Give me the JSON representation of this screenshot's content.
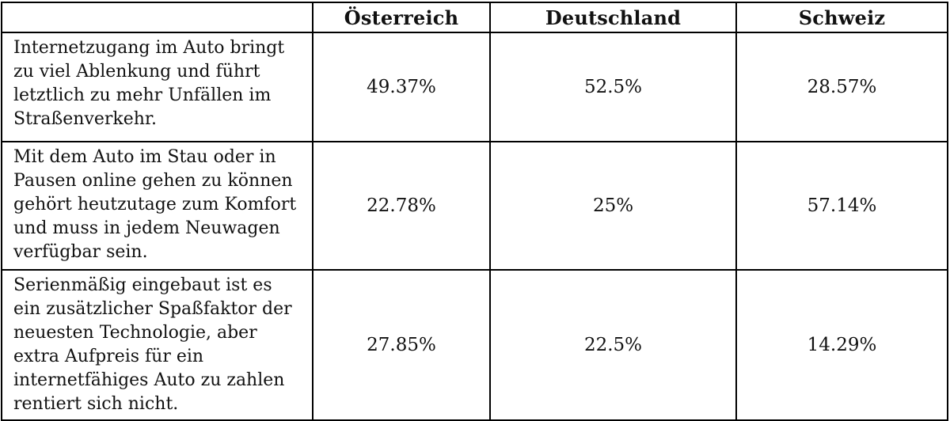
{
  "colors": {
    "border": "#000000",
    "text": "#111111",
    "background": "#ffffff"
  },
  "chart_data": {
    "type": "table",
    "columns": [
      "",
      "Österreich",
      "Deutschland",
      "Schweiz"
    ],
    "rows": [
      [
        "Internetzugang im Auto bringt zu viel Ablenkung und führt letztlich zu mehr Unfällen im Straßenverkehr.",
        "49.37%",
        "52.5%",
        "28.57%"
      ],
      [
        "Mit dem Auto im Stau oder in Pausen online gehen zu können gehört heutzutage zum Komfort und muss in jedem Neuwagen verfügbar sein.",
        "22.78%",
        "25%",
        "57.14%"
      ],
      [
        "Serienmäßig eingebaut ist es ein zusätzlicher Spaßfaktor der neuesten Technologie, aber extra Aufpreis für ein internetfähiges Auto zu zahlen rentiert sich nicht.",
        "27.85%",
        "22.5%",
        "14.29%"
      ]
    ],
    "series": [
      {
        "name": "Österreich",
        "values": [
          49.37,
          22.78,
          27.85
        ]
      },
      {
        "name": "Deutschland",
        "values": [
          52.5,
          25,
          22.5
        ]
      },
      {
        "name": "Schweiz",
        "values": [
          28.57,
          57.14,
          14.29
        ]
      }
    ],
    "title": "",
    "xlabel": "",
    "ylabel": "",
    "legend_position": "none",
    "grid": true
  }
}
